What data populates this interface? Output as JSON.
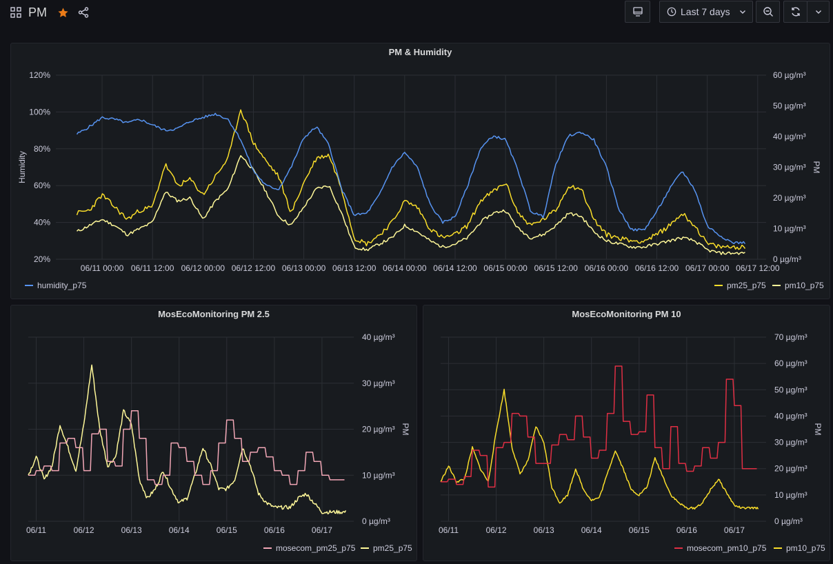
{
  "header": {
    "title": "PM",
    "time_range_label": "Last 7 days"
  },
  "colors": {
    "humidity": "#5794f2",
    "pm25": "#fade2a",
    "pm10": "#fff899",
    "pm25_small": "#fff899",
    "mosecom_pm25": "#f2a7b6",
    "mosecom_pm10": "#e02f44",
    "pm10_small": "#fade2a"
  },
  "panels": {
    "main": {
      "title": "PM & Humidity",
      "left_axis_label": "Humidity",
      "right_axis_label": "PM",
      "legend": {
        "left": "humidity_p75",
        "right1": "pm25_p75",
        "right2": "pm10_p75"
      }
    },
    "pm25": {
      "title": "MosEcoMonitoring PM 2.5",
      "right_axis_label": "PM",
      "legend": {
        "a": "mosecom_pm25_p75",
        "b": "pm25_p75"
      }
    },
    "pm10": {
      "title": "MosEcoMonitoring PM 10",
      "right_axis_label": "PM",
      "legend": {
        "a": "mosecom_pm10_p75",
        "b": "pm10_p75"
      }
    }
  },
  "chart_data": [
    {
      "type": "line",
      "title": "PM & Humidity",
      "x_unit": "hours since 06/11 00:00",
      "xlim": [
        -11,
        158
      ],
      "x_tick_labels": [
        "06/11 00:00",
        "06/11 12:00",
        "06/12 00:00",
        "06/12 12:00",
        "06/13 00:00",
        "06/13 12:00",
        "06/14 00:00",
        "06/14 12:00",
        "06/15 00:00",
        "06/15 12:00",
        "06/16 00:00",
        "06/16 12:00",
        "06/17 00:00",
        "06/17 12:00"
      ],
      "left_axis": {
        "label": "Humidity",
        "ylim": [
          20,
          120
        ],
        "tick_labels": [
          "20%",
          "40%",
          "60%",
          "80%",
          "100%",
          "120%"
        ]
      },
      "right_axis": {
        "label": "PM",
        "ylim": [
          0,
          60
        ],
        "tick_labels": [
          "0 µg/m³",
          "10 µg/m³",
          "20 µg/m³",
          "30 µg/m³",
          "40 µg/m³",
          "50 µg/m³",
          "60 µg/m³"
        ]
      },
      "series": [
        {
          "name": "humidity_p75",
          "axis": "left",
          "x": [
            -6,
            -3,
            0,
            3,
            6,
            9,
            12,
            15,
            18,
            21,
            24,
            27,
            30,
            33,
            36,
            39,
            42,
            45,
            48,
            51,
            54,
            57,
            60,
            63,
            66,
            69,
            72,
            75,
            78,
            81,
            84,
            87,
            90,
            93,
            96,
            99,
            102,
            105,
            108,
            111,
            114,
            117,
            120,
            123,
            126,
            129,
            132,
            135,
            138,
            141,
            144,
            147,
            150,
            153
          ],
          "y": [
            88,
            92,
            97,
            96,
            94,
            96,
            93,
            90,
            91,
            95,
            97,
            99,
            96,
            85,
            68,
            60,
            58,
            70,
            86,
            92,
            82,
            58,
            44,
            45,
            55,
            70,
            78,
            70,
            50,
            40,
            43,
            60,
            80,
            87,
            85,
            68,
            46,
            43,
            72,
            87,
            89,
            85,
            70,
            47,
            36,
            36,
            46,
            58,
            68,
            58,
            38,
            33,
            29,
            29
          ]
        },
        {
          "name": "pm25_p75",
          "axis": "right",
          "x": [
            -6,
            -3,
            0,
            3,
            6,
            9,
            12,
            15,
            18,
            21,
            24,
            27,
            30,
            33,
            36,
            39,
            42,
            45,
            48,
            51,
            54,
            57,
            60,
            63,
            66,
            69,
            72,
            75,
            78,
            81,
            84,
            87,
            90,
            93,
            96,
            99,
            102,
            105,
            108,
            111,
            114,
            117,
            120,
            123,
            126,
            129,
            132,
            135,
            138,
            141,
            144,
            147,
            150,
            153
          ],
          "y": [
            15,
            16,
            21,
            17,
            13,
            16,
            17,
            31,
            24,
            26,
            21,
            27,
            33,
            49,
            38,
            32,
            27,
            15,
            25,
            33,
            34,
            23,
            7,
            5,
            8,
            12,
            19,
            17,
            10,
            7,
            8,
            11,
            19,
            22,
            25,
            15,
            11,
            13,
            16,
            24,
            23,
            13,
            8,
            7,
            6,
            6,
            8,
            11,
            15,
            11,
            5,
            4,
            4,
            4
          ]
        },
        {
          "name": "pm10_p75",
          "axis": "right",
          "x": [
            -6,
            -3,
            0,
            3,
            6,
            9,
            12,
            15,
            18,
            21,
            24,
            27,
            30,
            33,
            36,
            39,
            42,
            45,
            48,
            51,
            54,
            57,
            60,
            63,
            66,
            69,
            72,
            75,
            78,
            81,
            84,
            87,
            90,
            93,
            96,
            99,
            102,
            105,
            108,
            111,
            114,
            117,
            120,
            123,
            126,
            129,
            132,
            135,
            138,
            141,
            144,
            147,
            150,
            153
          ],
          "y": [
            9,
            11,
            13,
            11,
            8,
            10,
            12,
            22,
            19,
            20,
            13,
            19,
            23,
            34,
            29,
            22,
            14,
            11,
            17,
            23,
            24,
            15,
            4,
            3,
            5,
            7,
            11,
            9,
            6,
            4,
            5,
            7,
            12,
            15,
            16,
            10,
            7,
            8,
            11,
            15,
            14,
            9,
            6,
            5,
            4,
            4,
            5,
            6,
            7,
            6,
            3,
            2,
            2,
            2
          ]
        }
      ]
    },
    {
      "type": "line",
      "title": "MosEcoMonitoring PM 2.5",
      "x_unit": "hours since 06/11 00:00",
      "xlim": [
        -4,
        160
      ],
      "x_tick_labels": [
        "06/11",
        "06/12",
        "06/13",
        "06/14",
        "06/15",
        "06/16",
        "06/17"
      ],
      "right_axis": {
        "label": "PM",
        "ylim": [
          0,
          40
        ],
        "tick_labels": [
          "0 µg/m³",
          "10 µg/m³",
          "20 µg/m³",
          "30 µg/m³",
          "40 µg/m³"
        ]
      },
      "series": [
        {
          "name": "mosecom_pm25_p75",
          "x": [
            -4,
            0,
            4,
            8,
            12,
            16,
            20,
            24,
            28,
            32,
            36,
            40,
            44,
            48,
            52,
            56,
            60,
            64,
            68,
            72,
            76,
            80,
            84,
            88,
            92,
            96,
            100,
            104,
            108,
            112,
            116,
            120,
            124,
            128,
            132,
            136,
            140,
            144,
            148,
            152
          ],
          "y": [
            10,
            11,
            12,
            11,
            17,
            18,
            16,
            11,
            19,
            20,
            13,
            12,
            20,
            24,
            18,
            9,
            8,
            10,
            17,
            16,
            13,
            10,
            8,
            11,
            17,
            22,
            18,
            13,
            15,
            16,
            14,
            11,
            10,
            8,
            11,
            15,
            13,
            10,
            9,
            9
          ]
        },
        {
          "name": "pm25_p75",
          "x": [
            -4,
            0,
            4,
            8,
            12,
            16,
            20,
            24,
            28,
            32,
            36,
            40,
            44,
            48,
            52,
            56,
            60,
            64,
            68,
            72,
            76,
            80,
            84,
            88,
            92,
            96,
            100,
            104,
            108,
            112,
            116,
            120,
            124,
            128,
            132,
            136,
            140,
            144,
            148,
            152,
            156
          ],
          "y": [
            10,
            14,
            9,
            12,
            21,
            16,
            11,
            21,
            34,
            20,
            12,
            14,
            24,
            21,
            9,
            5,
            7,
            11,
            7,
            4,
            5,
            10,
            16,
            12,
            7,
            7,
            9,
            16,
            12,
            6,
            4,
            3,
            3,
            3,
            5,
            6,
            4,
            2,
            2,
            2,
            2
          ]
        }
      ]
    },
    {
      "type": "line",
      "title": "MosEcoMonitoring PM 10",
      "x_unit": "hours since 06/11 00:00",
      "xlim": [
        -4,
        160
      ],
      "x_tick_labels": [
        "06/11",
        "06/12",
        "06/13",
        "06/14",
        "06/15",
        "06/16",
        "06/17"
      ],
      "right_axis": {
        "label": "PM",
        "ylim": [
          0,
          70
        ],
        "tick_labels": [
          "0 µg/m³",
          "10 µg/m³",
          "20 µg/m³",
          "30 µg/m³",
          "40 µg/m³",
          "50 µg/m³",
          "60 µg/m³",
          "70 µg/m³"
        ]
      },
      "series": [
        {
          "name": "mosecom_pm10_p75",
          "x": [
            -4,
            0,
            4,
            8,
            12,
            16,
            20,
            24,
            28,
            32,
            36,
            40,
            44,
            48,
            52,
            56,
            60,
            64,
            68,
            72,
            76,
            80,
            84,
            88,
            92,
            96,
            100,
            104,
            108,
            112,
            116,
            120,
            124,
            128,
            132,
            136,
            140,
            144,
            148,
            152
          ],
          "y": [
            15,
            16,
            14,
            17,
            27,
            25,
            13,
            28,
            30,
            41,
            40,
            32,
            22,
            22,
            29,
            33,
            31,
            40,
            32,
            24,
            27,
            41,
            59,
            38,
            33,
            34,
            48,
            28,
            20,
            36,
            22,
            19,
            21,
            28,
            24,
            30,
            54,
            44,
            20,
            20
          ]
        },
        {
          "name": "pm10_p75",
          "x": [
            -4,
            0,
            4,
            8,
            12,
            16,
            20,
            24,
            28,
            32,
            36,
            40,
            44,
            48,
            52,
            56,
            60,
            64,
            68,
            72,
            76,
            80,
            84,
            88,
            92,
            96,
            100,
            104,
            108,
            112,
            116,
            120,
            124,
            128,
            132,
            136,
            140,
            144,
            148,
            152,
            156
          ],
          "y": [
            15,
            21,
            15,
            16,
            28,
            20,
            15,
            34,
            50,
            28,
            18,
            23,
            36,
            30,
            13,
            7,
            10,
            20,
            12,
            8,
            9,
            18,
            27,
            20,
            12,
            10,
            13,
            24,
            17,
            10,
            7,
            5,
            5,
            7,
            12,
            16,
            11,
            6,
            5,
            5,
            5
          ]
        }
      ]
    }
  ]
}
